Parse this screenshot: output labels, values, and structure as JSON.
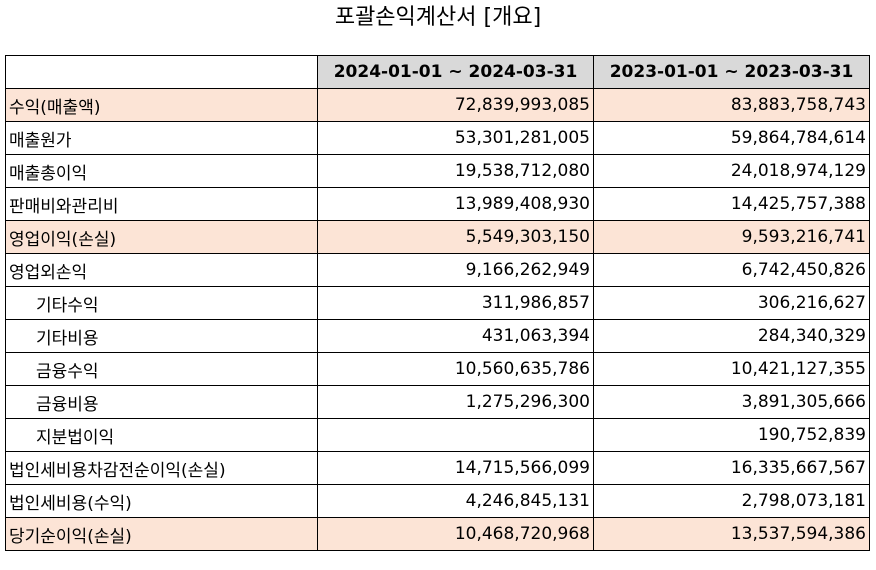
{
  "title": "포괄손익계산서 [개요]",
  "columns": [
    "",
    "2024-01-01 ~ 2024-03-31",
    "2023-01-01 ~ 2023-03-31"
  ],
  "colors": {
    "header_bg": "#d9d9d9",
    "highlight_bg": "#fce4d6"
  },
  "rows": [
    {
      "label": "수익(매출액)",
      "v2024": "72,839,993,085",
      "v2023": "83,883,758,743",
      "highlight": true,
      "indent": false
    },
    {
      "label": "매출원가",
      "v2024": "53,301,281,005",
      "v2023": "59,864,784,614",
      "highlight": false,
      "indent": false
    },
    {
      "label": "매출총이익",
      "v2024": "19,538,712,080",
      "v2023": "24,018,974,129",
      "highlight": false,
      "indent": false
    },
    {
      "label": "판매비와관리비",
      "v2024": "13,989,408,930",
      "v2023": "14,425,757,388",
      "highlight": false,
      "indent": false
    },
    {
      "label": "영업이익(손실)",
      "v2024": "5,549,303,150",
      "v2023": "9,593,216,741",
      "highlight": true,
      "indent": false
    },
    {
      "label": "영업외손익",
      "v2024": "9,166,262,949",
      "v2023": "6,742,450,826",
      "highlight": false,
      "indent": false
    },
    {
      "label": "기타수익",
      "v2024": "311,986,857",
      "v2023": "306,216,627",
      "highlight": false,
      "indent": true
    },
    {
      "label": "기타비용",
      "v2024": "431,063,394",
      "v2023": "284,340,329",
      "highlight": false,
      "indent": true
    },
    {
      "label": "금융수익",
      "v2024": "10,560,635,786",
      "v2023": "10,421,127,355",
      "highlight": false,
      "indent": true
    },
    {
      "label": "금융비용",
      "v2024": "1,275,296,300",
      "v2023": "3,891,305,666",
      "highlight": false,
      "indent": true
    },
    {
      "label": "지분법이익",
      "v2024": "",
      "v2023": "190,752,839",
      "highlight": false,
      "indent": true
    },
    {
      "label": "법인세비용차감전순이익(손실)",
      "v2024": "14,715,566,099",
      "v2023": "16,335,667,567",
      "highlight": false,
      "indent": false
    },
    {
      "label": "법인세비용(수익)",
      "v2024": "4,246,845,131",
      "v2023": "2,798,073,181",
      "highlight": false,
      "indent": false
    },
    {
      "label": "당기순이익(손실)",
      "v2024": "10,468,720,968",
      "v2023": "13,537,594,386",
      "highlight": true,
      "indent": false
    }
  ]
}
